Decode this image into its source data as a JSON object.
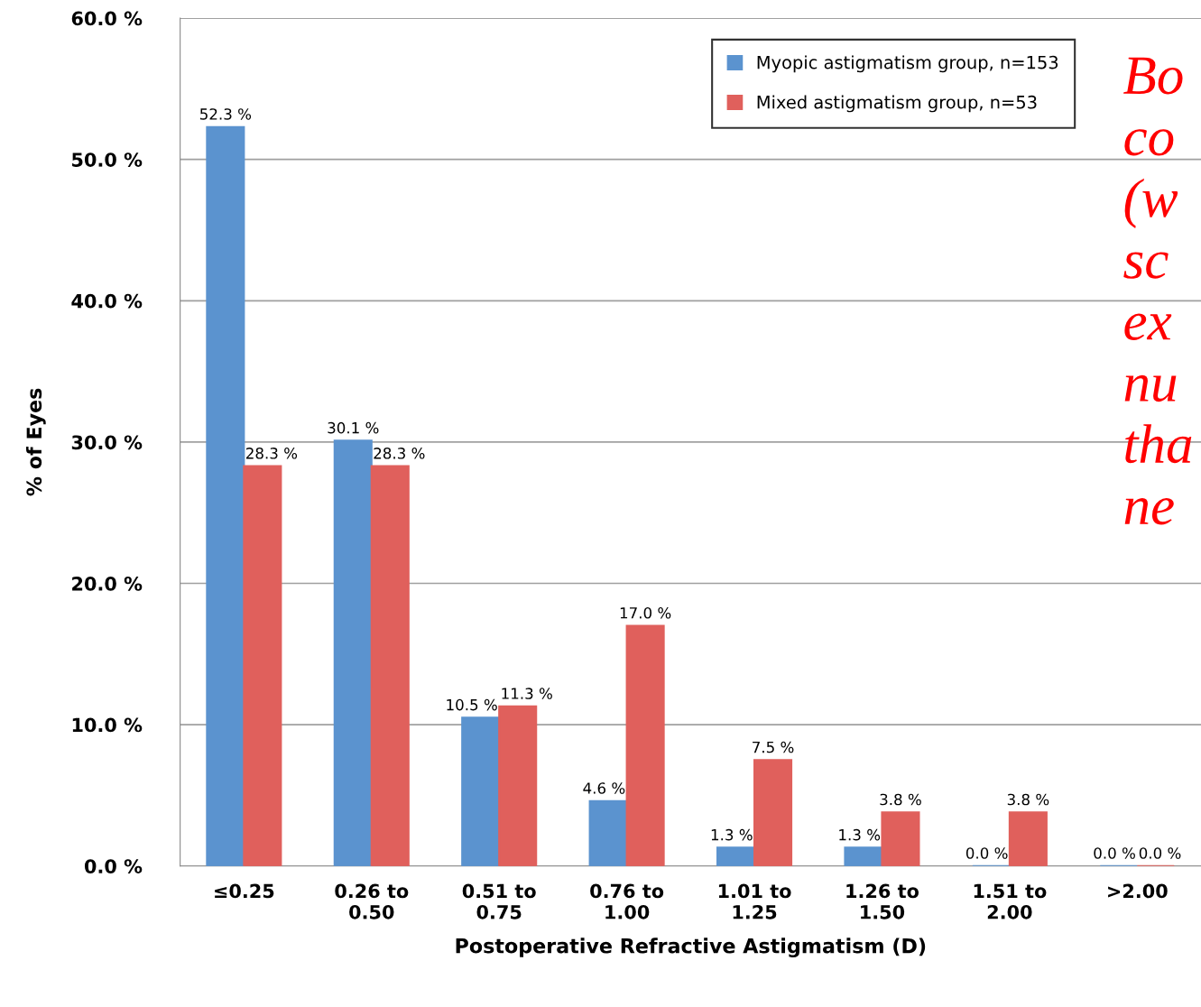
{
  "chart_data": {
    "type": "bar",
    "ylabel": "% of Eyes",
    "xlabel": "Postoperative Refractive Astigmatism (D)",
    "categories": [
      "≤0.25",
      "0.26 to\n0.50",
      "0.51 to\n0.75",
      "0.76 to\n1.00",
      "1.01 to\n1.25",
      "1.26 to\n1.50",
      "1.51 to\n2.00",
      ">2.00"
    ],
    "series": [
      {
        "name": "Myopic astigmatism group, n=153",
        "color": "#5b93cf",
        "values": [
          52.3,
          30.1,
          10.5,
          4.6,
          1.3,
          1.3,
          0.0,
          0.0
        ],
        "value_labels": [
          "52.3 %",
          "30.1 %",
          "10.5 %",
          "4.6 %",
          "1.3 %",
          "1.3 %",
          "0.0 %",
          "0.0 %"
        ]
      },
      {
        "name": "Mixed astigmatism group, n=53",
        "color": "#e0605c",
        "values": [
          28.3,
          28.3,
          11.3,
          17.0,
          7.5,
          3.8,
          3.8,
          0.0
        ],
        "value_labels": [
          "28.3 %",
          "28.3 %",
          "11.3 %",
          "17.0 %",
          "7.5 %",
          "3.8 %",
          "3.8 %",
          "0.0 %"
        ]
      }
    ],
    "ylim": [
      0,
      60
    ],
    "yticks": [
      {
        "value": 0,
        "label": "0.0 %"
      },
      {
        "value": 10,
        "label": "10.0 %"
      },
      {
        "value": 20,
        "label": "20.0 %"
      },
      {
        "value": 30,
        "label": "30.0 %"
      },
      {
        "value": 40,
        "label": "40.0 %"
      },
      {
        "value": 50,
        "label": "50.0 %"
      },
      {
        "value": 60,
        "label": "60.0 %"
      }
    ],
    "grid": "y",
    "legend": "top right",
    "annotations": [
      "Bo\nco\n(w\nsc\nex\nnu\ntha\nne"
    ]
  }
}
